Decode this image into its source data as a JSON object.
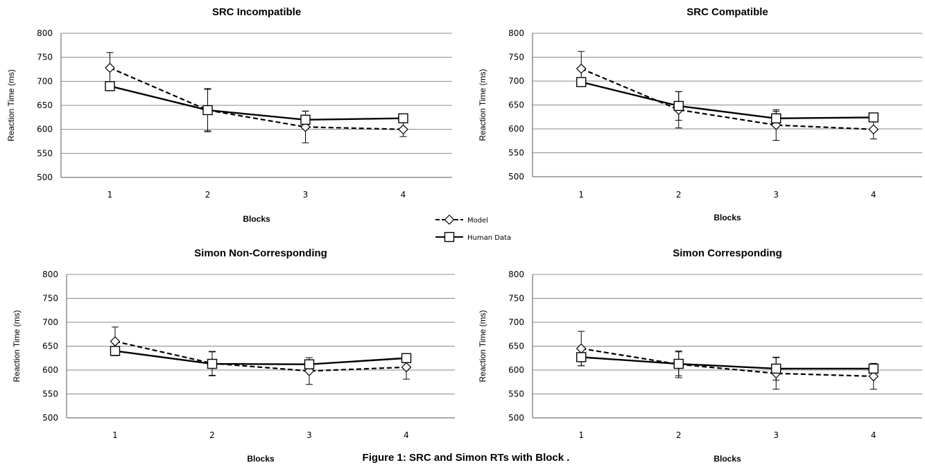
{
  "caption": "Figure 1: SRC and Simon RTs with Block .",
  "legend": [
    {
      "label": "Model",
      "style": "dashed",
      "marker": "diamond"
    },
    {
      "label": "Human Data",
      "style": "solid",
      "marker": "square"
    }
  ],
  "chart_data": [
    {
      "type": "line",
      "title": "SRC Incompatible",
      "xlabel": "Blocks",
      "ylabel": "Reaction Time (ms)",
      "categories": [
        "1",
        "2",
        "3",
        "4"
      ],
      "ylim": [
        500,
        800
      ],
      "yticks": [
        500,
        550,
        600,
        650,
        700,
        750,
        800
      ],
      "grid": true,
      "series": [
        {
          "name": "Model",
          "values": [
            728,
            640,
            605,
            600
          ],
          "error": [
            32,
            45,
            33,
            15
          ]
        },
        {
          "name": "Human Data",
          "values": [
            690,
            640,
            620,
            623
          ],
          "error": [
            0,
            43,
            18,
            0
          ]
        }
      ]
    },
    {
      "type": "line",
      "title": "SRC Compatible",
      "xlabel": "Blocks",
      "ylabel": "Reaction Time (ms)",
      "categories": [
        "1",
        "2",
        "3",
        "4"
      ],
      "ylim": [
        500,
        800
      ],
      "yticks": [
        500,
        550,
        600,
        650,
        700,
        750,
        800
      ],
      "grid": true,
      "series": [
        {
          "name": "Model",
          "values": [
            726,
            640,
            608,
            599
          ],
          "error": [
            36,
            38,
            32,
            20
          ]
        },
        {
          "name": "Human Data",
          "values": [
            698,
            648,
            622,
            624
          ],
          "error": [
            0,
            30,
            15,
            0
          ]
        }
      ]
    },
    {
      "type": "line",
      "title": "Simon Non-Corresponding",
      "xlabel": "Blocks",
      "ylabel": "Reaction Time (ms)",
      "categories": [
        "1",
        "2",
        "3",
        "4"
      ],
      "ylim": [
        500,
        800
      ],
      "yticks": [
        500,
        550,
        600,
        650,
        700,
        750,
        800
      ],
      "grid": true,
      "series": [
        {
          "name": "Model",
          "values": [
            660,
            614,
            598,
            606
          ],
          "error": [
            30,
            25,
            28,
            25
          ]
        },
        {
          "name": "Human Data",
          "values": [
            640,
            613,
            612,
            625
          ],
          "error": [
            0,
            25,
            7,
            0
          ]
        }
      ]
    },
    {
      "type": "line",
      "title": "Simon Corresponding",
      "xlabel": "Blocks",
      "ylabel": "Reaction Time (ms)",
      "categories": [
        "1",
        "2",
        "3",
        "4"
      ],
      "ylim": [
        500,
        800
      ],
      "yticks": [
        500,
        550,
        600,
        650,
        700,
        750,
        800
      ],
      "grid": true,
      "series": [
        {
          "name": "Model",
          "values": [
            645,
            612,
            593,
            587
          ],
          "error": [
            36,
            28,
            33,
            27
          ]
        },
        {
          "name": "Human Data",
          "values": [
            627,
            613,
            603,
            603
          ],
          "error": [
            18,
            25,
            24,
            0
          ]
        }
      ]
    }
  ]
}
